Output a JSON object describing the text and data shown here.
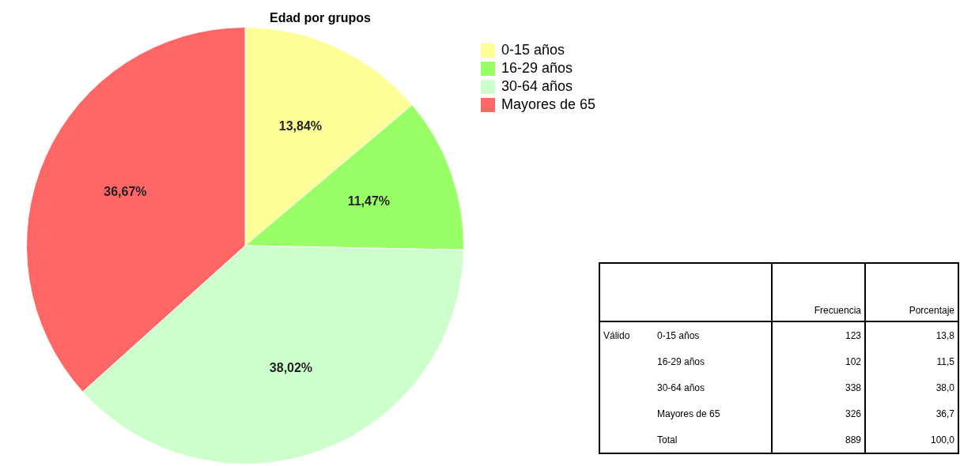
{
  "chart_data": [
    {
      "type": "pie",
      "title": "Edad por grupos",
      "categories": [
        "0-15 años",
        "16-29 años",
        "30-64 años",
        "Mayores de 65"
      ],
      "values": [
        13.84,
        11.47,
        38.02,
        36.67
      ],
      "colors": [
        "#ffff99",
        "#99ff66",
        "#ccffcc",
        "#ff6666"
      ],
      "value_labels": [
        "13,84%",
        "11,47%",
        "38,02%",
        "36,67%"
      ],
      "legend": "top right"
    },
    {
      "type": "other",
      "data_labels": true,
      "categories": [
        "0-15 años",
        "16-29 años",
        "30-64 años",
        "Mayores de 65",
        "Total"
      ],
      "annotations": [
        "Válido"
      ],
      "series": [
        {
          "name": "Frecuencia",
          "values": [
            123,
            102,
            338,
            326,
            889
          ]
        },
        {
          "name": "Porcentaje",
          "values": [
            13.8,
            11.5,
            38.0,
            36.7,
            100.0
          ],
          "value_labels": [
            "13,8",
            "11,5",
            "38,0",
            "36,7",
            "100,0"
          ]
        }
      ]
    }
  ]
}
